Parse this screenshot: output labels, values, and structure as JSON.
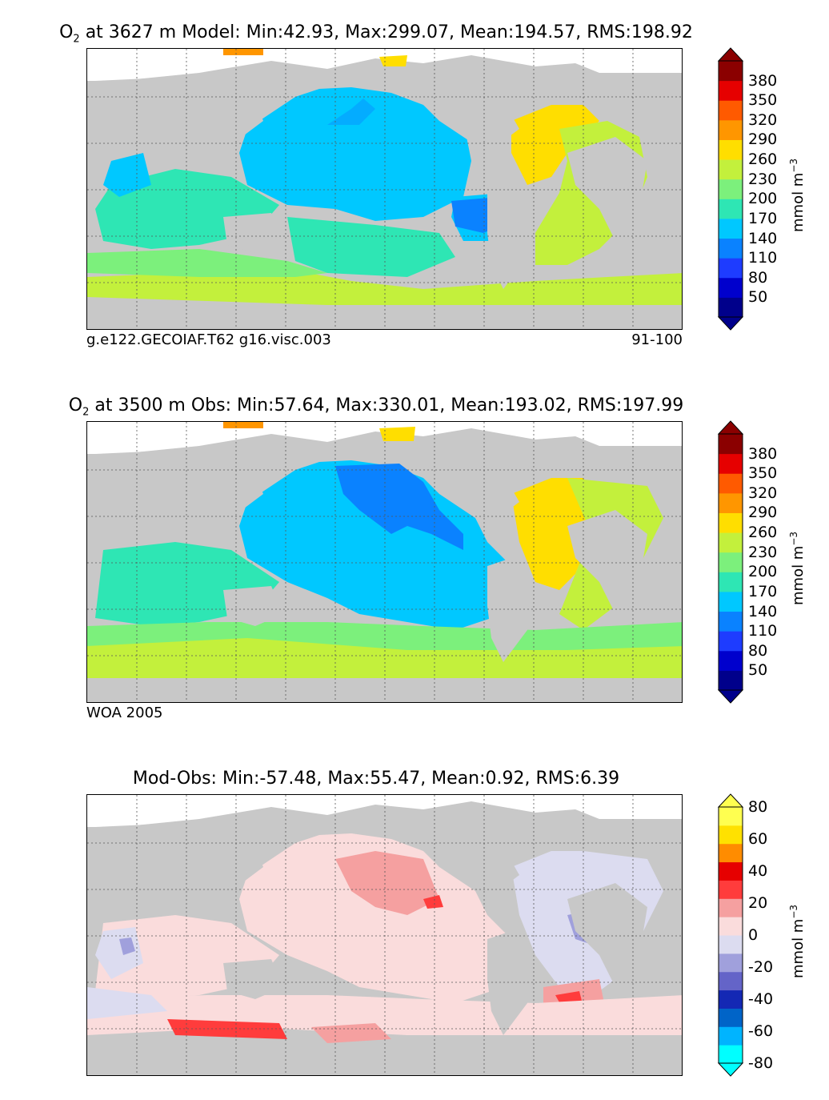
{
  "panels": [
    {
      "id": "model",
      "title_prefix": "O",
      "title_sub": "2",
      "title_rest": " at 3627 m Model: Min:42.93, Max:299.07, Mean:194.57, RMS:198.92",
      "caption_left": "g.e122.GECOIAF.T62 g16.visc.003",
      "caption_right": "91-100"
    },
    {
      "id": "obs",
      "title_prefix": "O",
      "title_sub": "2",
      "title_rest": " at 3500 m Obs: Min:57.64, Max:330.01, Mean:193.02, RMS:197.99",
      "caption_left": "WOA 2005",
      "caption_right": ""
    },
    {
      "id": "diff",
      "title_prefix": "",
      "title_sub": "",
      "title_rest": "Mod-Obs: Min:-57.48, Max:55.47, Mean:0.92, RMS:6.39",
      "caption_left": "",
      "caption_right": ""
    }
  ],
  "colorbars": {
    "o2": {
      "unit_label": "mmol m",
      "unit_exp": "−3",
      "ticks": [
        "380",
        "350",
        "320",
        "290",
        "260",
        "230",
        "200",
        "170",
        "140",
        "110",
        "80",
        "50"
      ],
      "colors": [
        "#00008b",
        "#0000cd",
        "#1e3cff",
        "#0a82ff",
        "#00c8ff",
        "#2ee6b4",
        "#7cf07c",
        "#c3f03c",
        "#ffde00",
        "#ff9600",
        "#ff5a00",
        "#e60000",
        "#8b0000"
      ]
    },
    "diff": {
      "unit_label": "mmol m",
      "unit_exp": "−3",
      "ticks": [
        "80",
        "60",
        "40",
        "20",
        "0",
        "-20",
        "-40",
        "-60",
        "-80"
      ],
      "colors": [
        "#00ffff",
        "#00b4ff",
        "#0064c8",
        "#1428b4",
        "#6464c8",
        "#a0a0dc",
        "#dcdcf0",
        "#fadcdc",
        "#f5a0a0",
        "#ff3c3c",
        "#e60000",
        "#ff8c00",
        "#ffe100",
        "#ffff50"
      ]
    }
  },
  "fields": {
    "land": "#c8c8c8",
    "model": {
      "pacific": "#00c8ff",
      "atlantic_north": "#ffde00",
      "atlantic_mid": "#c3f03c",
      "southern": "#c3f03c",
      "indian": "#2ee6b4",
      "southeast_pacific": "#0a82ff",
      "arctic": "#ff9600"
    },
    "obs": {
      "pacific": "#00c8ff",
      "pacific_north": "#0a82ff",
      "atlantic_north": "#ffde00",
      "atlantic_mid": "#c3f03c",
      "southern": "#c3f03c",
      "indian": "#2ee6b4",
      "arctic": "#ff9600"
    },
    "diff": {
      "positive": "#fadcdc",
      "positive_mid": "#f5a0a0",
      "positive_high": "#ff3c3c",
      "negative": "#dcdcf0",
      "negative_mid": "#a0a0dc"
    }
  }
}
